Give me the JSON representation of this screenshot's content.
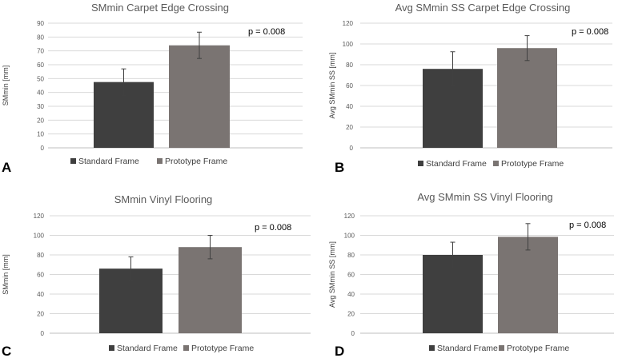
{
  "colors": {
    "standard": "#3f3f3f",
    "prototype": "#7a7472"
  },
  "chart_data": [
    {
      "type": "bar",
      "panel_label": "A",
      "title": "SMmin Carpet Edge Crossing",
      "ylabel": "SMmin [mm]",
      "categories": [
        "Standard Frame",
        "Prototype Frame"
      ],
      "values": [
        47.5,
        74
      ],
      "errors": [
        9.5,
        9.5
      ],
      "ylim": [
        0,
        90
      ],
      "yticks": [
        0,
        10,
        20,
        30,
        40,
        50,
        60,
        70,
        80,
        90
      ],
      "annotation": "p = 0.008",
      "legend": [
        "Standard Frame",
        "Prototype Frame"
      ]
    },
    {
      "type": "bar",
      "panel_label": "B",
      "title": "Avg SMmin SS Carpet Edge Crossing",
      "ylabel": "Avg SMmin SS [mm]",
      "categories": [
        "Standard Frame",
        "Prototype Frame"
      ],
      "values": [
        76,
        96
      ],
      "errors": [
        16.5,
        12
      ],
      "ylim": [
        0,
        120
      ],
      "yticks": [
        0,
        20,
        40,
        60,
        80,
        100,
        120
      ],
      "annotation": "p = 0.008",
      "legend": [
        "Standard Frame",
        "Prototype Frame"
      ]
    },
    {
      "type": "bar",
      "panel_label": "C",
      "title": "SMmin Vinyl Flooring",
      "ylabel": "SMmin [mm]",
      "categories": [
        "Standard Frame",
        "Prototype Frame"
      ],
      "values": [
        66,
        88
      ],
      "errors": [
        12,
        12
      ],
      "ylim": [
        0,
        120
      ],
      "yticks": [
        0,
        20,
        40,
        60,
        80,
        100,
        120
      ],
      "annotation": "p = 0.008",
      "legend": [
        "Standard Frame",
        "Prototype Frame"
      ]
    },
    {
      "type": "bar",
      "panel_label": "D",
      "title": "Avg SMmin SS Vinyl Flooring",
      "ylabel": "Avg SMmin SS [mm]",
      "categories": [
        "Standard Frame",
        "Prototype Frame"
      ],
      "values": [
        80,
        98.5
      ],
      "errors": [
        13,
        13.5
      ],
      "ylim": [
        0,
        120
      ],
      "yticks": [
        0,
        20,
        40,
        60,
        80,
        100,
        120
      ],
      "annotation": "p = 0.008",
      "legend": [
        "Standard Frame",
        "Prototype Frame"
      ]
    }
  ]
}
